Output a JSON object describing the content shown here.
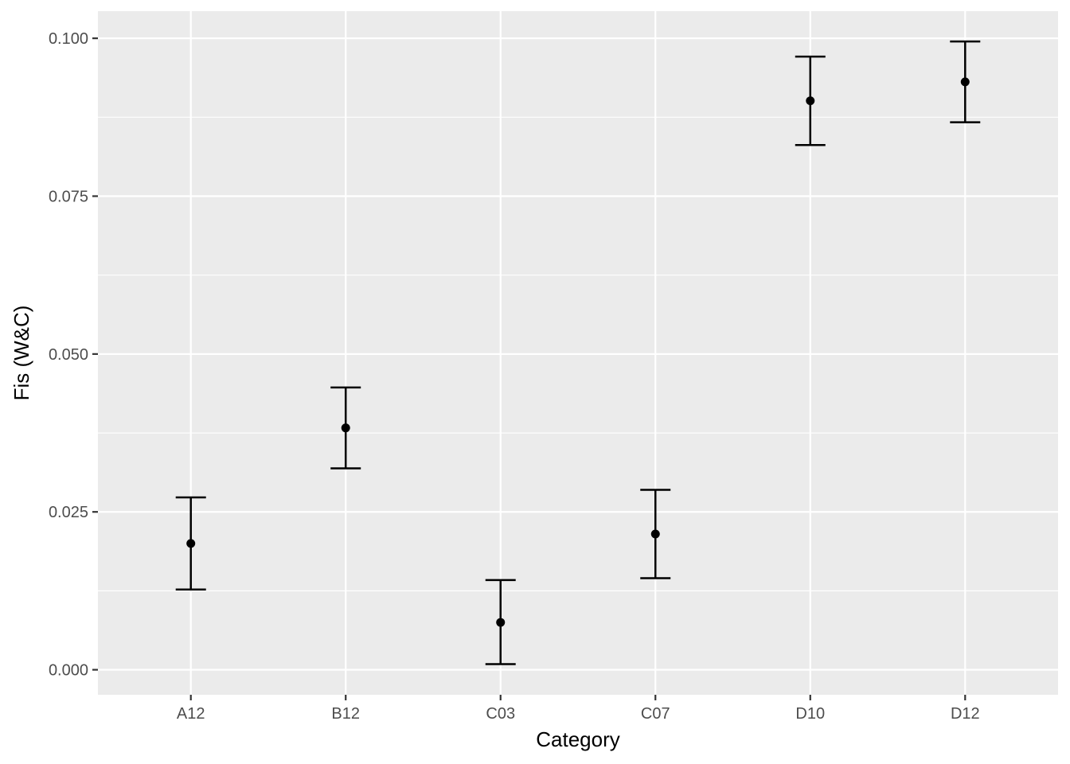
{
  "chart_data": {
    "type": "scatter",
    "title": "",
    "xlabel": "Category",
    "ylabel": "Fis (W&C)",
    "categories": [
      "A12",
      "B12",
      "C03",
      "C07",
      "D10",
      "D12"
    ],
    "values": [
      0.02,
      0.0383,
      0.0075,
      0.0215,
      0.0901,
      0.0931
    ],
    "error_lower": [
      0.0127,
      0.0319,
      0.0009,
      0.0145,
      0.0831,
      0.0867
    ],
    "error_upper": [
      0.0273,
      0.0447,
      0.0142,
      0.0285,
      0.0971,
      0.0995
    ],
    "ylim": [
      -0.00396,
      0.1043
    ],
    "y_ticks": [
      0.0,
      0.025,
      0.05,
      0.075,
      0.1
    ],
    "y_tick_labels": [
      "0.000",
      "0.025",
      "0.050",
      "0.075",
      "0.100"
    ],
    "grid": true,
    "legend": "none",
    "colors": {
      "panel_background": "#EBEBEB",
      "grid": "#FFFFFF",
      "points": "#000000",
      "error_bars": "#000000",
      "tick_labels": "#4D4D4D",
      "axis_titles": "#000000"
    }
  }
}
